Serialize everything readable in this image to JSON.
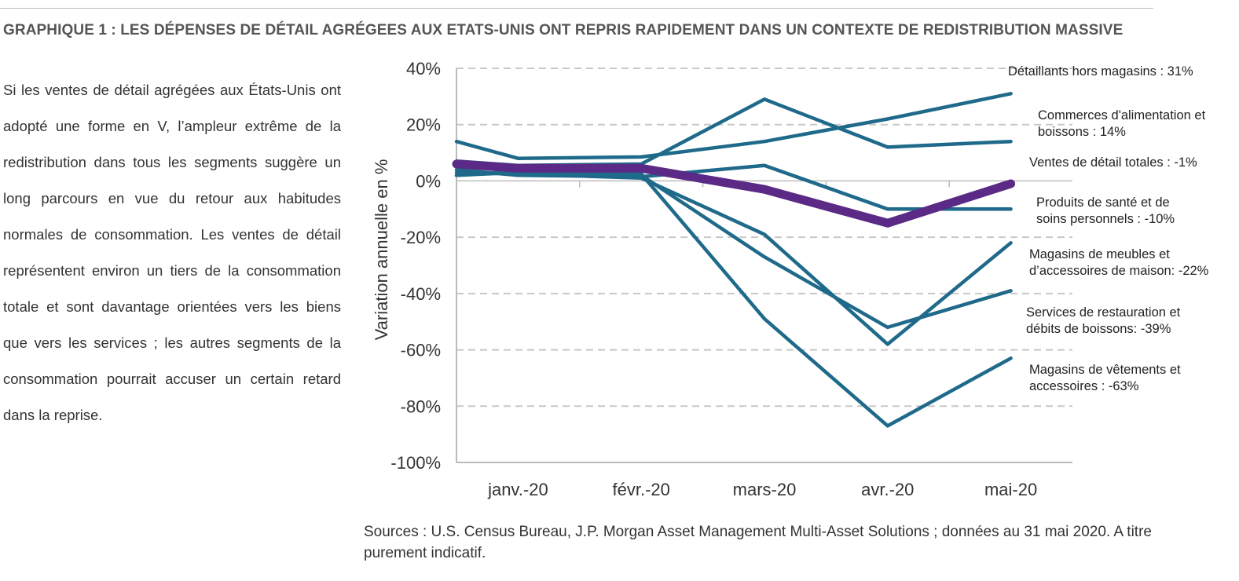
{
  "header": {
    "title": "GRAPHIQUE 1 : LES DÉPENSES DE DÉTAIL AGRÉGEES AUX ETATS-UNIS ONT REPRIS RAPIDEMENT DANS UN CONTEXTE DE REDISTRIBUTION MASSIVE"
  },
  "body": {
    "paragraph": "Si les ventes de détail agrégées aux États-Unis ont adopté une forme en V, l’ampleur extrême de la redistribution dans tous les segments suggère un long parcours en vue du retour aux habitudes normales de consommation. Les ventes de détail représentent environ un tiers de la consommation totale et sont davantage orientées vers les biens que vers les services ; les autres segments de la consommation pourrait accuser un certain retard dans la reprise."
  },
  "footer": {
    "source": "Sources : U.S. Census Bureau, J.P. Morgan Asset Management Multi-Asset Solutions ; données au 31 mai 2020. A titre purement indicatif."
  },
  "colors": {
    "series": "#1f6a8a",
    "highlight": "#5b2a86",
    "grid": "#c8c8c8",
    "axis": "#333333"
  },
  "chart_data": {
    "type": "line",
    "title": "",
    "xlabel": "",
    "ylabel": "Variation annuelle en %",
    "categories": [
      "janv.-20",
      "févr.-20",
      "mars-20",
      "avr.-20",
      "mai-20"
    ],
    "ylim": [
      -100,
      40
    ],
    "yticks": [
      40,
      20,
      0,
      -20,
      -40,
      -60,
      -80,
      -100
    ],
    "ytick_labels": [
      "40%",
      "20%",
      "0%",
      "-20%",
      "-40%",
      "-60%",
      "-80%",
      "-100%"
    ],
    "grid": true,
    "start_values": [
      14,
      7,
      6,
      4,
      3,
      2,
      2,
      5
    ],
    "series": [
      {
        "name": "Détaillants hors magasins : 31%",
        "values": [
          8,
          8.5,
          14,
          22,
          31
        ],
        "highlight": false
      },
      {
        "name": "Commerces d'alimentation et boissons : 14%",
        "values": [
          5.5,
          6,
          29,
          12,
          14
        ],
        "highlight": false
      },
      {
        "name": "Ventes de détail totales : -1%",
        "values": [
          4.5,
          4.5,
          -3,
          -15,
          -1
        ],
        "highlight": true
      },
      {
        "name": "Produits de santé et de soins personnels : -10%",
        "values": [
          2,
          1.5,
          5.5,
          -10,
          -10
        ],
        "highlight": false
      },
      {
        "name": "Magasins de meubles et d’accessoires de maison: -22%",
        "values": [
          2.5,
          1,
          -19,
          -58,
          -22
        ],
        "highlight": false
      },
      {
        "name": "Services de restauration et débits de boissons: -39%",
        "values": [
          3,
          2,
          -27,
          -52,
          -39
        ],
        "highlight": false
      },
      {
        "name": "Magasins de vêtements et accessoires : -63%",
        "values": [
          3.5,
          2.5,
          -49,
          -87,
          -63
        ],
        "highlight": false
      }
    ],
    "labels": [
      {
        "lines": [
          "Détaillants hors magasins : 31%"
        ]
      },
      {
        "lines": [
          "Commerces d'alimentation et",
          "boissons : 14%"
        ]
      },
      {
        "lines": [
          "Ventes de détail totales : -1%"
        ]
      },
      {
        "lines": [
          "Produits de santé et de",
          "soins personnels : -10%"
        ]
      },
      {
        "lines": [
          "Magasins de meubles et",
          "d’accessoires de maison: -22%"
        ]
      },
      {
        "lines": [
          "Services de restauration et",
          "débits de boissons: -39%"
        ]
      },
      {
        "lines": [
          "Magasins de vêtements et",
          "accessoires : -63%"
        ]
      }
    ]
  }
}
